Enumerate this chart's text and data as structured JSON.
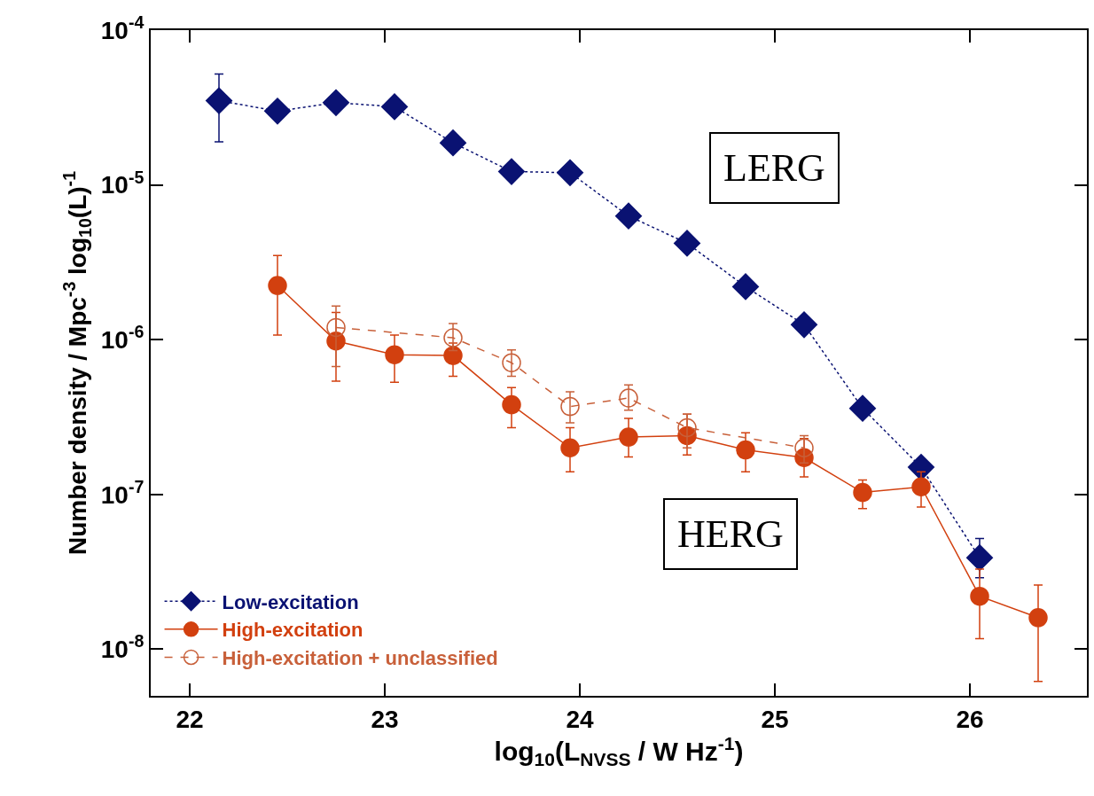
{
  "chart_data": {
    "type": "line",
    "xlabel": "log$_{10}$(L$_{NVSS}$ / W Hz$^{-1}$)",
    "ylabel": "Number density / Mpc$^{-3}$ log$_{10}$(L)$^{-1}$",
    "x": [
      22.15,
      22.45,
      22.75,
      23.05,
      23.35,
      23.65,
      23.95,
      24.25,
      24.55,
      24.85,
      25.15,
      25.45,
      25.75,
      26.05,
      26.35
    ],
    "log": "y",
    "xlim": [
      21.8,
      26.6
    ],
    "xticks": [
      22,
      23,
      24,
      25,
      26
    ],
    "ylim": [
      5e-09,
      0.0001
    ],
    "yticks": [
      {
        "value": 1e-08,
        "label": "10$^{-8}$"
      },
      {
        "value": 1e-07,
        "label": "10$^{-7}$"
      },
      {
        "value": 1e-06,
        "label": "10$^{-6}$"
      },
      {
        "value": 1e-05,
        "label": "10$^{-5}$"
      },
      {
        "value": 0.0001,
        "label": "10$^{-4}$"
      }
    ],
    "legend": "bottom left",
    "series": [
      {
        "name": "Low-excitation",
        "color": "#0a1272",
        "marker": "diamond",
        "line_style": "dotted",
        "values": [
          3.5e-05,
          3e-05,
          3.4e-05,
          3.2e-05,
          1.87e-05,
          1.22e-05,
          1.2e-05,
          6.3e-06,
          4.2e-06,
          2.2e-06,
          1.25e-06,
          3.6e-07,
          1.5e-07,
          3.9e-08,
          null
        ],
        "errors": [
          [
            1.9e-05,
            5.2e-05
          ],
          null,
          null,
          null,
          null,
          null,
          null,
          null,
          null,
          null,
          null,
          null,
          null,
          [
            2.9e-08,
            5.2e-08
          ],
          null
        ]
      },
      {
        "name": "High-excitation",
        "color": "#d2400f",
        "marker": "circle",
        "line_style": "solid",
        "values": [
          null,
          2.24e-06,
          9.8e-07,
          8e-07,
          7.9e-07,
          3.8e-07,
          2e-07,
          2.35e-07,
          2.4e-07,
          1.94e-07,
          1.73e-07,
          1.03e-07,
          1.12e-07,
          2.2e-08,
          1.6e-08
        ],
        "errors": [
          null,
          [
            1.07e-06,
            3.5e-06
          ],
          [
            5.4e-07,
            1.5e-06
          ],
          [
            5.3e-07,
            1.07e-06
          ],
          [
            5.8e-07,
            9.5e-07
          ],
          [
            2.7e-07,
            4.9e-07
          ],
          [
            1.4e-07,
            2.7e-07
          ],
          [
            1.75e-07,
            3.1e-07
          ],
          [
            1.8e-07,
            3.3e-07
          ],
          [
            1.4e-07,
            2.5e-07
          ],
          [
            1.3e-07,
            2.3e-07
          ],
          [
            8.1e-08,
            1.24e-07
          ],
          [
            8.3e-08,
            1.4e-07
          ],
          [
            1.17e-08,
            3.3e-08
          ],
          [
            6.2e-09,
            2.6e-08
          ]
        ]
      },
      {
        "name": "High-excitation + unclassified",
        "color": "#c8603a",
        "marker": "circle-open",
        "line_style": "dashed",
        "values": [
          null,
          null,
          1.2e-06,
          null,
          1.03e-06,
          7.1e-07,
          3.7e-07,
          4.2e-07,
          2.7e-07,
          null,
          2e-07,
          null,
          null,
          null,
          null
        ],
        "errors": [
          null,
          null,
          [
            6.7e-07,
            1.65e-06
          ],
          null,
          [
            8.5e-07,
            1.27e-06
          ],
          [
            5.8e-07,
            8.6e-07
          ],
          [
            2.9e-07,
            4.6e-07
          ],
          [
            3.5e-07,
            5.1e-07
          ],
          [
            2e-07,
            3.3e-07
          ],
          null,
          [
            1.6e-07,
            2.4e-07
          ],
          null,
          null,
          null,
          null
        ]
      }
    ],
    "annotations": [
      "LERG",
      "HERG"
    ]
  }
}
